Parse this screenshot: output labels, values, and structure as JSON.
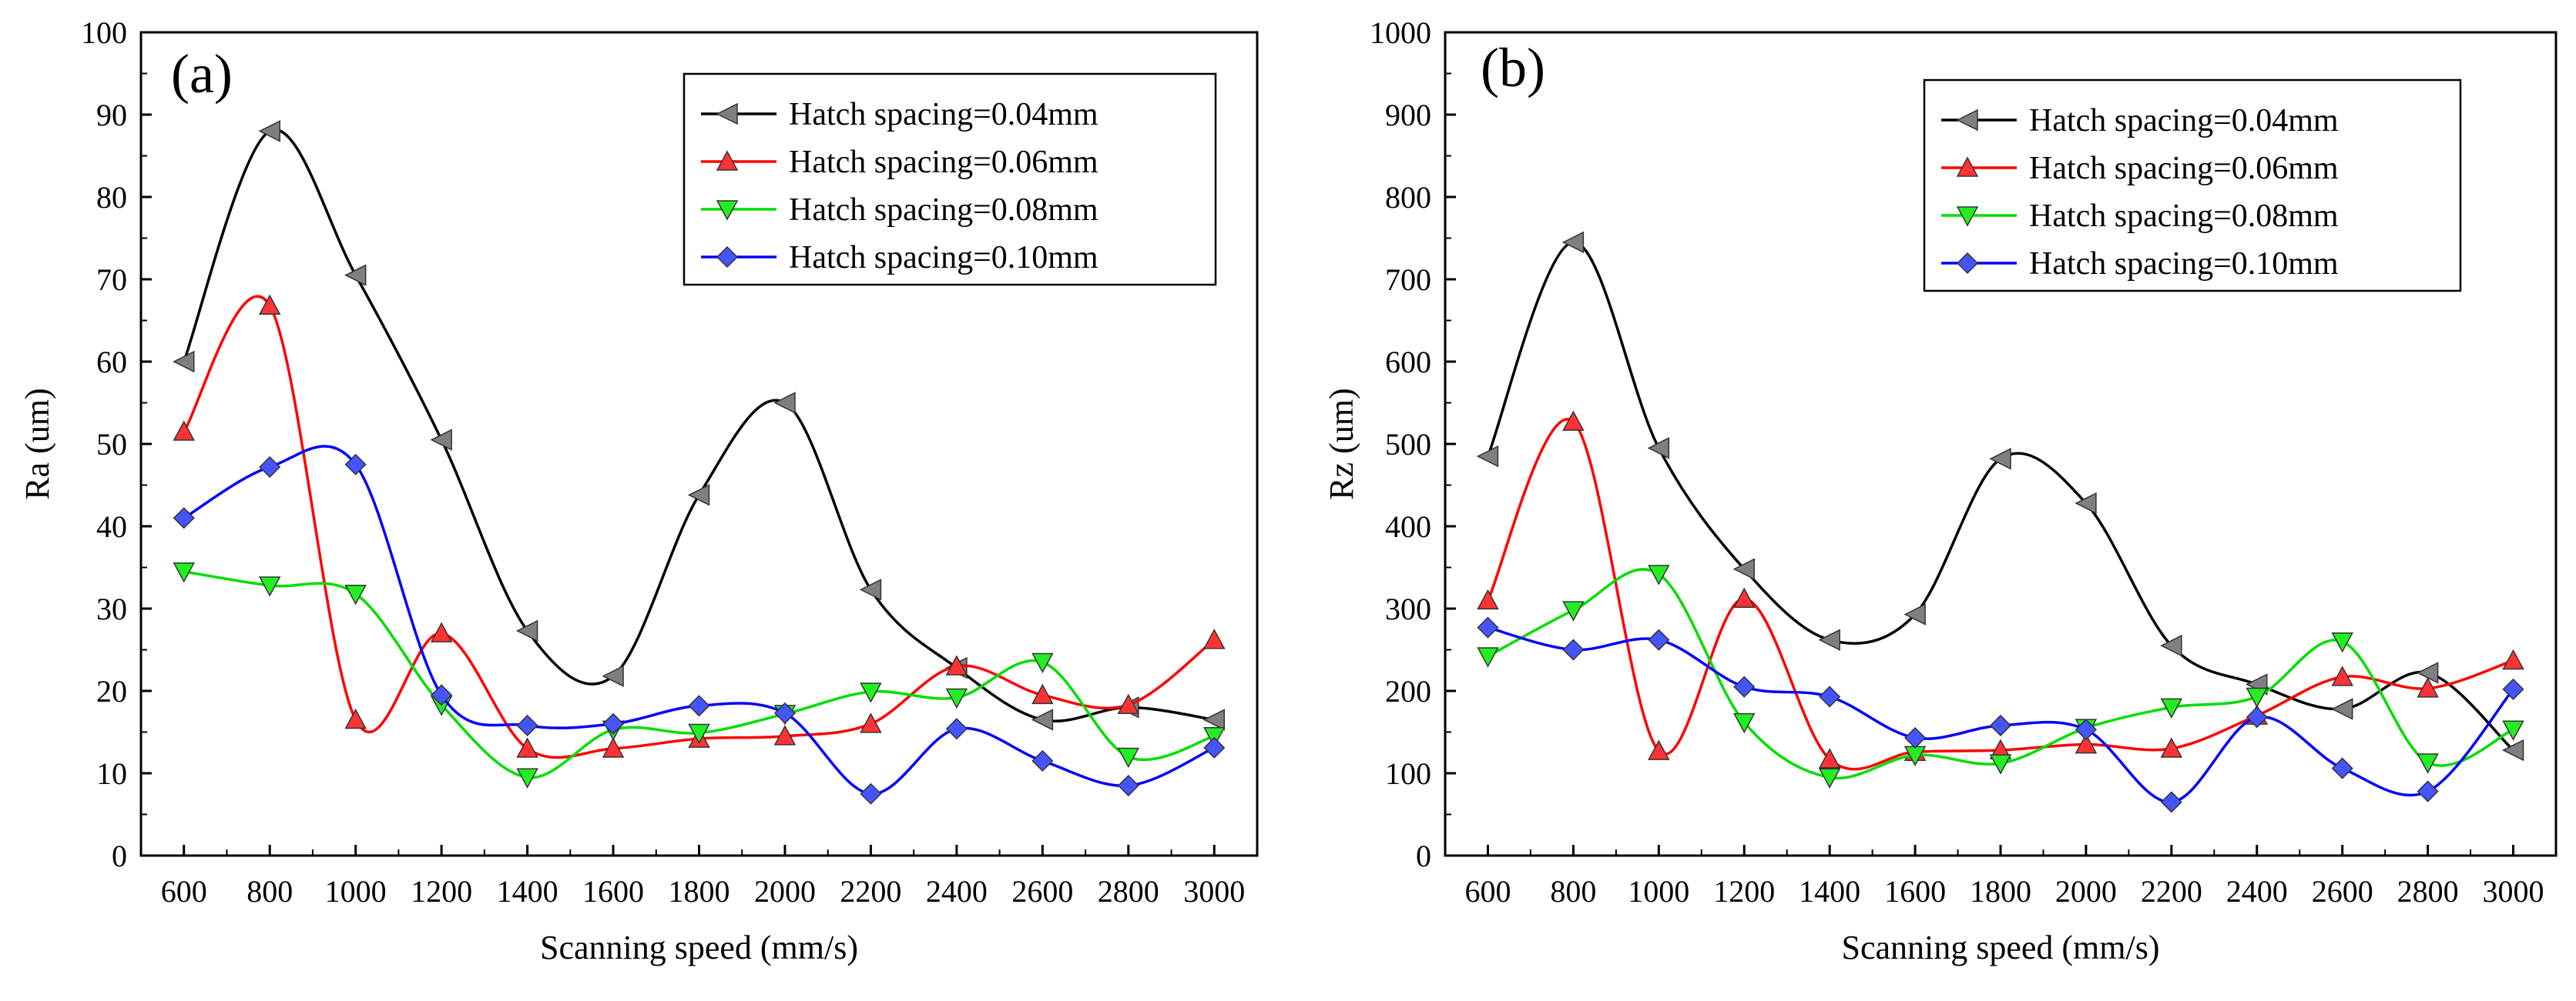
{
  "chart_data": [
    {
      "type": "scatter",
      "panel_label": "(a)",
      "xlabel": "Scanning speed (mm/s)",
      "ylabel": "Ra (um)",
      "xlim": [
        500,
        3100
      ],
      "ylim": [
        0,
        100
      ],
      "x_ticks": [
        "600",
        "800",
        "1000",
        "1200",
        "1400",
        "1600",
        "1800",
        "2000",
        "2200",
        "2400",
        "2600",
        "2800",
        "3000"
      ],
      "y_ticks": [
        "0",
        "10",
        "20",
        "30",
        "40",
        "50",
        "60",
        "70",
        "80",
        "90",
        "100"
      ],
      "legend_position": "top-right",
      "series": [
        {
          "name": "Hatch spacing=0.04mm",
          "color": "#7f7f7f",
          "line_color": "#000000",
          "marker": "triangle-left",
          "x": [
            600,
            800,
            1000,
            1200,
            1400,
            1600,
            1800,
            2000,
            2200,
            2400,
            2600,
            2800,
            3000
          ],
          "y": [
            60,
            88,
            70.5,
            50.5,
            27.3,
            21.8,
            43.8,
            55,
            32.3,
            22.8,
            16.5,
            18,
            16.5
          ]
        },
        {
          "name": "Hatch spacing=0.06mm",
          "color": "#ff3333",
          "line_color": "#ff0000",
          "marker": "triangle-up",
          "x": [
            600,
            800,
            1000,
            1200,
            1400,
            1600,
            1800,
            2000,
            2200,
            2400,
            2600,
            2800,
            3000
          ],
          "y": [
            51.5,
            66.8,
            16.5,
            27,
            13,
            13,
            14.2,
            14.5,
            16,
            23,
            19.5,
            18.3,
            26.2
          ]
        },
        {
          "name": "Hatch spacing=0.08mm",
          "color": "#22ee22",
          "line_color": "#00dd00",
          "marker": "triangle-down",
          "x": [
            600,
            800,
            1000,
            1200,
            1400,
            1600,
            1800,
            2000,
            2200,
            2400,
            2600,
            2800,
            3000
          ],
          "y": [
            34.5,
            32.8,
            31.8,
            18.3,
            9.5,
            15.3,
            14.9,
            17.2,
            19.9,
            19.2,
            23.5,
            12,
            14.5
          ]
        },
        {
          "name": "Hatch spacing=0.10mm",
          "color": "#4455ff",
          "line_color": "#0000ff",
          "marker": "diamond",
          "x": [
            600,
            800,
            1000,
            1200,
            1400,
            1600,
            1800,
            2000,
            2200,
            2400,
            2600,
            2800,
            3000
          ],
          "y": [
            41,
            47.2,
            47.5,
            19.5,
            15.8,
            16,
            18.2,
            17.3,
            7.5,
            15.4,
            11.5,
            8.5,
            13.1
          ]
        }
      ]
    },
    {
      "type": "scatter",
      "panel_label": "(b)",
      "xlabel": "Scanning speed (mm/s)",
      "ylabel": "Rz (um)",
      "xlim": [
        500,
        3100
      ],
      "ylim": [
        0,
        1000
      ],
      "x_ticks": [
        "600",
        "800",
        "1000",
        "1200",
        "1400",
        "1600",
        "1800",
        "2000",
        "2200",
        "2400",
        "2600",
        "2800",
        "3000"
      ],
      "y_ticks": [
        "0",
        "100",
        "200",
        "300",
        "400",
        "500",
        "600",
        "700",
        "800",
        "900",
        "1000"
      ],
      "legend_position": "top-right",
      "series": [
        {
          "name": "Hatch spacing=0.04mm",
          "color": "#7f7f7f",
          "line_color": "#000000",
          "marker": "triangle-left",
          "x": [
            600,
            800,
            1000,
            1200,
            1400,
            1600,
            1800,
            2000,
            2200,
            2400,
            2600,
            2800,
            3000
          ],
          "y": [
            485,
            745,
            495,
            348,
            262,
            293,
            482,
            428,
            255,
            208,
            178,
            222,
            128
          ]
        },
        {
          "name": "Hatch spacing=0.06mm",
          "color": "#ff3333",
          "line_color": "#ff0000",
          "marker": "triangle-up",
          "x": [
            600,
            800,
            1000,
            1200,
            1400,
            1600,
            1800,
            2000,
            2200,
            2400,
            2600,
            2800,
            3000
          ],
          "y": [
            310,
            527,
            127,
            312,
            117,
            126,
            128,
            135,
            130,
            170,
            217,
            203,
            237
          ]
        },
        {
          "name": "Hatch spacing=0.08mm",
          "color": "#22ee22",
          "line_color": "#00dd00",
          "marker": "triangle-down",
          "x": [
            600,
            800,
            1000,
            1200,
            1400,
            1600,
            1800,
            2000,
            2200,
            2400,
            2600,
            2800,
            3000
          ],
          "y": [
            242,
            298,
            342,
            162,
            95,
            122,
            112,
            155,
            180,
            193,
            260,
            113,
            153
          ]
        },
        {
          "name": "Hatch spacing=0.10mm",
          "color": "#4455ff",
          "line_color": "#0000ff",
          "marker": "diamond",
          "x": [
            600,
            800,
            1000,
            1200,
            1400,
            1600,
            1800,
            2000,
            2200,
            2400,
            2600,
            2800,
            3000
          ],
          "y": [
            277,
            250,
            262,
            205,
            193,
            143,
            158,
            153,
            65,
            168,
            106,
            78,
            202
          ]
        }
      ]
    }
  ]
}
